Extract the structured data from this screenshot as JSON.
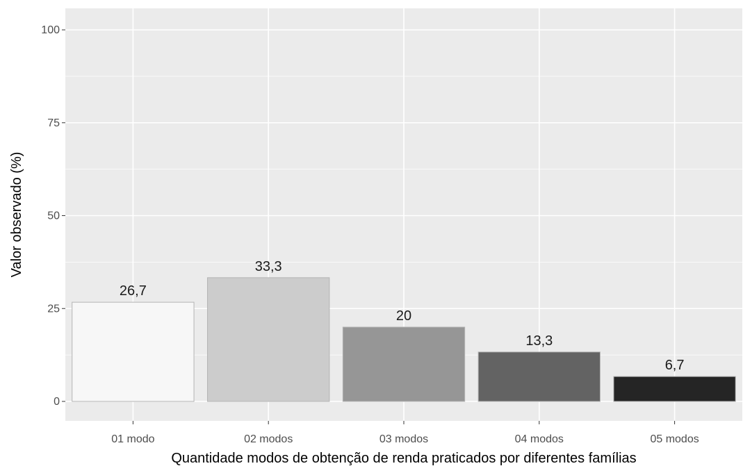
{
  "chart_data": {
    "type": "bar",
    "title": "",
    "xlabel": "Quantidade modos de obtenção de renda praticados por diferentes famílias",
    "ylabel": "Valor observado (%)",
    "ylim": [
      0,
      105
    ],
    "yticks": [
      0,
      25,
      50,
      75,
      100
    ],
    "ytick_labels": [
      "0",
      "25",
      "50",
      "75",
      "100"
    ],
    "grid": true,
    "legend": "none",
    "categories": [
      "01 modo",
      "02 modos",
      "03 modos",
      "04 modos",
      "05 modos"
    ],
    "values": [
      26.7,
      33.3,
      20,
      13.3,
      6.7
    ],
    "data_labels": [
      "26,7",
      "33,3",
      "20",
      "13,3",
      "6,7"
    ],
    "bar_colors": [
      "#f7f7f7",
      "#cccccc",
      "#969696",
      "#636363",
      "#252525"
    ],
    "panel_background": "#ebebeb",
    "grid_color": "#ffffff"
  }
}
